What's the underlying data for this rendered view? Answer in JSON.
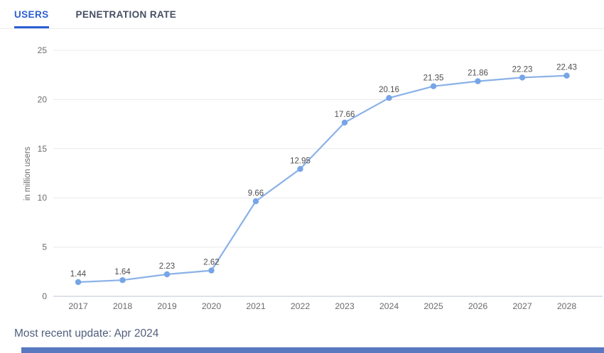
{
  "tabs": [
    {
      "label": "USERS",
      "active": true
    },
    {
      "label": "PENETRATION RATE",
      "active": false
    }
  ],
  "chart_data": {
    "type": "line",
    "x": [
      "2017",
      "2018",
      "2019",
      "2020",
      "2021",
      "2022",
      "2023",
      "2024",
      "2025",
      "2026",
      "2027",
      "2028"
    ],
    "values": [
      1.44,
      1.64,
      2.23,
      2.62,
      9.66,
      12.95,
      17.66,
      20.16,
      21.35,
      21.86,
      22.23,
      22.43
    ],
    "data_labels": [
      "1.44",
      "1.64",
      "2.23",
      "2.62",
      "9.66",
      "12.95",
      "17.66",
      "20.16",
      "21.35",
      "21.86",
      "22.23",
      "22.43"
    ],
    "title": "",
    "xlabel": "",
    "ylabel": "in million users",
    "ylim": [
      0,
      25
    ],
    "yticks": [
      0,
      5,
      10,
      15,
      20,
      25
    ],
    "grid": true,
    "legend": "none",
    "colors": {
      "line": "#8ab1e8",
      "point": "#76a5e7",
      "gridline": "#e9eaee",
      "zero_line": "#dde2ea",
      "tick_text": "#6b6b6b",
      "axis_title_text": "#6b6b6b",
      "data_label_text": "#4f4f4f"
    }
  },
  "footer": {
    "update_text": "Most recent update: Apr 2024"
  },
  "theme": {
    "accent": "#2b5fd3",
    "inactive_tab": "#454e63",
    "scrollbar": "#5878c0"
  }
}
